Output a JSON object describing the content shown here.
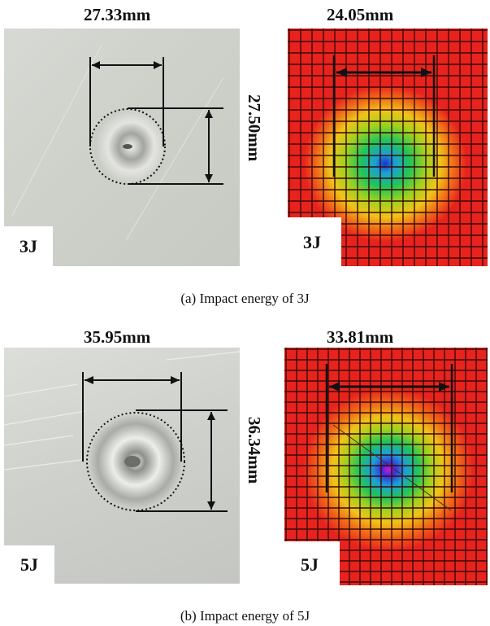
{
  "panel_a": {
    "photo_width_label": "27.33mm",
    "photo_height_label": "27.50mm",
    "photo_tag": "3J",
    "sim_width_label": "24.05mm",
    "sim_tag": "3J",
    "caption": "(a) Impact energy of 3J"
  },
  "panel_b": {
    "photo_width_label": "35.95mm",
    "photo_height_label": "36.34mm",
    "photo_tag": "5J",
    "sim_width_label": "33.81mm",
    "sim_tag": "5J",
    "caption": "(b) Impact energy of 5J"
  },
  "colors": {
    "fem_background": "#e8231e",
    "grid_lines": "#3a0a08",
    "dent_center": "#1d2fd0"
  }
}
